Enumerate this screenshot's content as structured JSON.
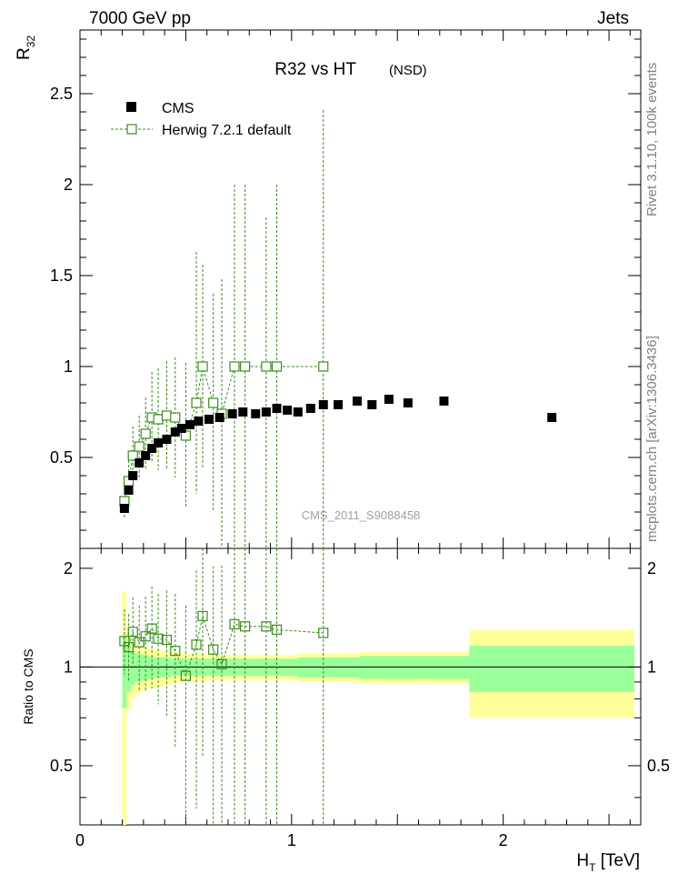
{
  "header": {
    "left": "7000 GeV pp",
    "right": "Jets"
  },
  "title": {
    "main": "R32 vs HT",
    "sub": "(NSD)"
  },
  "side_labels": {
    "rivet": "Rivet 3.1.10,  100k events",
    "mcplots": "mcplots.cern.ch [arXiv:1306.3436]"
  },
  "watermark": "CMS_2011_S9088458",
  "colors": {
    "data": "#000000",
    "mc": "#3a8c1e",
    "band_inner": "#99ff99",
    "band_outer": "#ffff99"
  },
  "chart_data": [
    {
      "type": "scatter",
      "panel": "main",
      "ylabel": "R32",
      "xlabel": "HT [TeV]",
      "xlim": [
        0,
        2.65
      ],
      "ylim": [
        0,
        2.85
      ],
      "yticks": [
        "0.5",
        "1",
        "1.5",
        "2",
        "2.5"
      ],
      "ytick_values": [
        0.5,
        1,
        1.5,
        2,
        2.5
      ],
      "legend_position": "top-left",
      "series": [
        {
          "name": "CMS",
          "marker": "filled-square",
          "x": [
            0.21,
            0.23,
            0.25,
            0.28,
            0.31,
            0.34,
            0.37,
            0.41,
            0.45,
            0.48,
            0.52,
            0.56,
            0.61,
            0.66,
            0.72,
            0.77,
            0.83,
            0.88,
            0.93,
            0.98,
            1.03,
            1.09,
            1.15,
            1.22,
            1.31,
            1.38,
            1.46,
            1.55,
            1.72,
            2.23
          ],
          "y": [
            0.22,
            0.32,
            0.4,
            0.47,
            0.51,
            0.55,
            0.58,
            0.6,
            0.64,
            0.66,
            0.68,
            0.7,
            0.71,
            0.72,
            0.74,
            0.75,
            0.74,
            0.75,
            0.77,
            0.76,
            0.75,
            0.77,
            0.79,
            0.79,
            0.81,
            0.79,
            0.82,
            0.8,
            0.81,
            0.72
          ]
        },
        {
          "name": "Herwig 7.2.1 default",
          "marker": "open-square-dashed",
          "x": [
            0.21,
            0.23,
            0.25,
            0.28,
            0.31,
            0.34,
            0.37,
            0.41,
            0.45,
            0.5,
            0.55,
            0.58,
            0.63,
            0.67,
            0.73,
            0.78,
            0.88,
            0.93,
            1.15
          ],
          "y": [
            0.26,
            0.37,
            0.51,
            0.56,
            0.63,
            0.72,
            0.71,
            0.73,
            0.72,
            0.62,
            0.8,
            1.0,
            0.8,
            0.74,
            1.0,
            1.0,
            1.0,
            1.0,
            1.0
          ],
          "err_low": [
            0.1,
            0.14,
            0.16,
            0.17,
            0.2,
            0.25,
            0.28,
            0.3,
            0.33,
            0.4,
            0.5,
            0.56,
            0.6,
            0.74,
            1.0,
            1.0,
            1.0,
            1.0,
            1.0
          ],
          "err_high": [
            0.1,
            0.14,
            0.16,
            0.17,
            0.2,
            0.25,
            0.28,
            0.3,
            0.33,
            0.4,
            0.83,
            0.56,
            0.6,
            0.74,
            1.0,
            1.0,
            0.82,
            1.0,
            1.41
          ]
        }
      ]
    },
    {
      "type": "scatter",
      "panel": "ratio",
      "ylabel": "Ratio to CMS",
      "xlabel": "HT [TeV]",
      "xlim": [
        0,
        2.65
      ],
      "ylim": [
        0.33,
        2.3
      ],
      "yticks": [
        "0.5",
        "1",
        "2"
      ],
      "ytick_values": [
        0.5,
        1,
        2
      ],
      "xticks": [
        "0",
        "1",
        "2"
      ],
      "xtick_values": [
        0,
        1,
        2
      ],
      "bands": {
        "edges": [
          0.2,
          0.22,
          0.24,
          0.26,
          0.29,
          0.32,
          0.35,
          0.39,
          0.43,
          0.47,
          0.51,
          0.55,
          0.6,
          0.65,
          0.7,
          0.75,
          0.8,
          0.85,
          0.91,
          0.97,
          1.03,
          1.09,
          1.16,
          1.24,
          1.32,
          1.42,
          1.52,
          1.62,
          1.84,
          2.62
        ],
        "inner": [
          0.25,
          0.16,
          0.12,
          0.1,
          0.09,
          0.08,
          0.07,
          0.07,
          0.06,
          0.06,
          0.06,
          0.06,
          0.06,
          0.06,
          0.06,
          0.06,
          0.06,
          0.06,
          0.06,
          0.06,
          0.07,
          0.07,
          0.07,
          0.07,
          0.08,
          0.08,
          0.08,
          0.08,
          0.16
        ],
        "outer": [
          0.7,
          0.26,
          0.2,
          0.17,
          0.15,
          0.14,
          0.13,
          0.12,
          0.11,
          0.1,
          0.1,
          0.1,
          0.09,
          0.09,
          0.09,
          0.09,
          0.09,
          0.09,
          0.09,
          0.09,
          0.1,
          0.1,
          0.1,
          0.1,
          0.11,
          0.11,
          0.11,
          0.11,
          0.3
        ]
      },
      "series": [
        {
          "name": "Herwig 7.2.1 default",
          "x": [
            0.21,
            0.23,
            0.25,
            0.28,
            0.31,
            0.34,
            0.37,
            0.41,
            0.45,
            0.5,
            0.55,
            0.58,
            0.63,
            0.67,
            0.73,
            0.78,
            0.88,
            0.93,
            1.15
          ],
          "y": [
            1.2,
            1.15,
            1.28,
            1.19,
            1.24,
            1.31,
            1.22,
            1.21,
            1.12,
            0.94,
            1.17,
            1.43,
            1.13,
            1.02,
            1.35,
            1.33,
            1.33,
            1.3,
            1.27
          ],
          "err_low": [
            0.25,
            0.25,
            0.3,
            0.35,
            0.4,
            0.45,
            0.45,
            0.5,
            0.55,
            0.6,
            0.8,
            0.9,
            0.9,
            1.02,
            1.35,
            1.33,
            1.33,
            1.3,
            1.27
          ],
          "err_high": [
            0.3,
            0.3,
            0.35,
            0.35,
            0.4,
            0.45,
            0.45,
            0.5,
            0.55,
            0.6,
            0.8,
            0.9,
            0.9,
            1.02,
            1.35,
            1.33,
            1.33,
            1.3,
            1.27
          ]
        }
      ]
    }
  ]
}
